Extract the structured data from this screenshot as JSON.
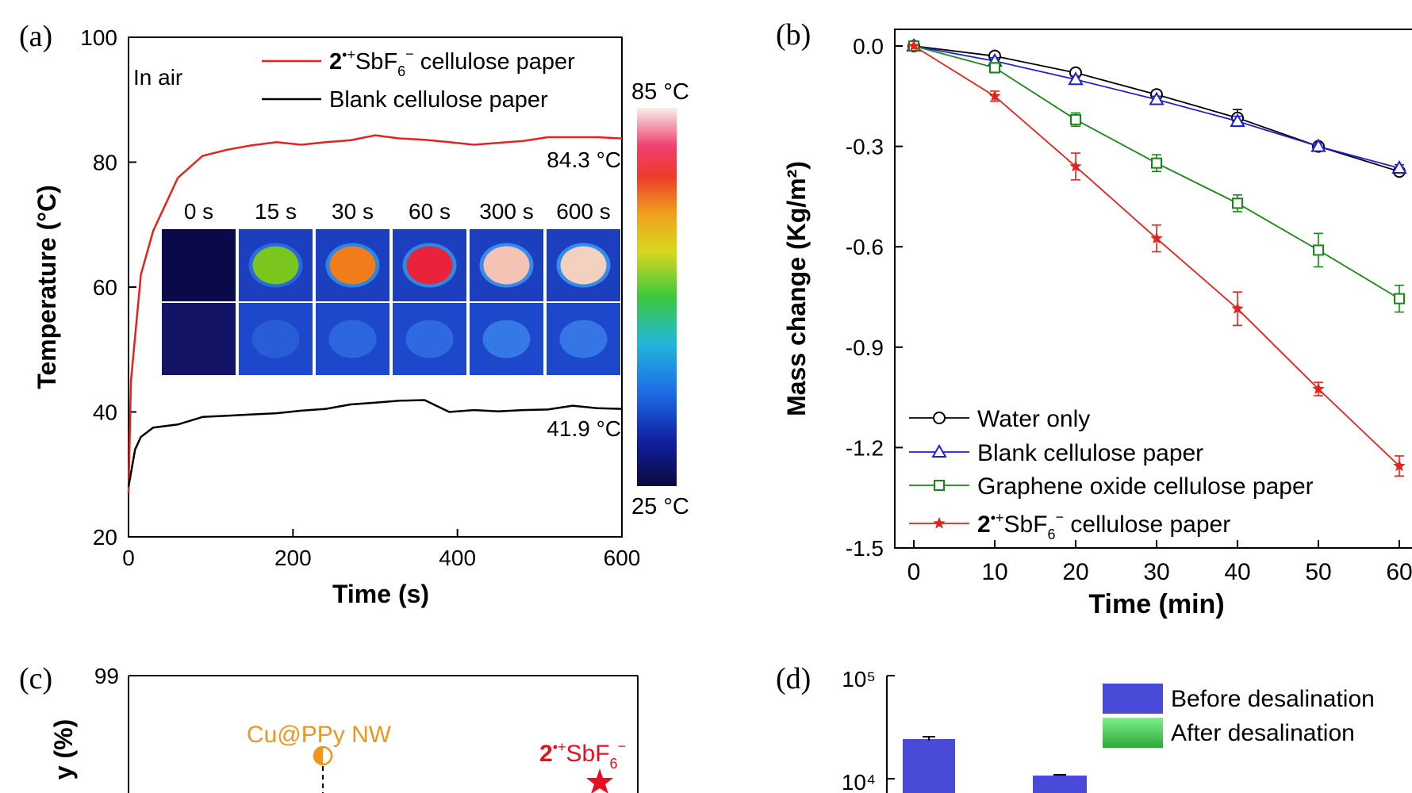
{
  "panels": {
    "a": {
      "label": "(a)",
      "annotation": "In air",
      "chart_data": {
        "type": "line",
        "xlabel": "Time (s)",
        "ylabel": "Temperature (°C)",
        "xlim": [
          0,
          600
        ],
        "ylim": [
          20,
          100
        ],
        "xticks": [
          "0",
          "200",
          "400",
          "600"
        ],
        "yticks": [
          "20",
          "40",
          "60",
          "80",
          "100"
        ],
        "legend_position": "top-right",
        "series": [
          {
            "name": "2•+SbF6− cellulose paper",
            "color": "#e8211e",
            "end_label": "84.3 °C",
            "x": [
              0,
              3,
              15,
              30,
              60,
              90,
              120,
              150,
              180,
              210,
              240,
              270,
              300,
              330,
              360,
              390,
              420,
              450,
              480,
              510,
              540,
              570,
              600
            ],
            "y": [
              27,
              45,
              62,
              69,
              77.5,
              81,
              82,
              82.7,
              83.2,
              82.8,
              83.2,
              83.5,
              84.3,
              83.8,
              83.6,
              83.2,
              82.8,
              83.1,
              83.4,
              84,
              84,
              84,
              83.8
            ]
          },
          {
            "name": "Blank cellulose paper",
            "color": "#000000",
            "end_label": "41.9 °C",
            "x": [
              0,
              8,
              15,
              30,
              60,
              90,
              120,
              150,
              180,
              210,
              240,
              270,
              300,
              330,
              360,
              390,
              420,
              450,
              480,
              510,
              540,
              570,
              600
            ],
            "y": [
              28,
              34,
              36,
              37.5,
              38,
              39.2,
              39.4,
              39.6,
              39.8,
              40.2,
              40.5,
              41.2,
              41.5,
              41.8,
              41.9,
              40,
              40.3,
              40.1,
              40.3,
              40.4,
              41,
              40.6,
              40.5
            ]
          }
        ],
        "series_name_parts": [
          {
            "main": "2",
            "sup": "•+",
            "mid": "SbF",
            "sub": "6",
            "sup2": "−",
            "rest": " cellulose paper"
          },
          {
            "rest": "Blank cellulose paper"
          }
        ]
      },
      "colorbar": {
        "max_label": "85 °C",
        "min_label": "25 °C"
      },
      "thermal_images": {
        "times": [
          "0 s",
          "15 s",
          "30 s",
          "60 s",
          "300 s",
          "600 s"
        ],
        "top_row_color": [
          "#0a0a4a",
          "#7ac61e",
          "#f07d1a",
          "#e8233a",
          "#f5c3b4",
          "#f4d0c0"
        ],
        "top_row_glow": [
          "#0a0a4a",
          "#2a6ee0",
          "#2b8ee8",
          "#3390e8",
          "#3a95ee",
          "#3a95ee"
        ],
        "bottom_row_color": [
          "#101060",
          "#2a62d8",
          "#2f6ce2",
          "#3270e4",
          "#3a82ea",
          "#3a7ee8"
        ],
        "top_row_level": [
          0,
          0.45,
          0.7,
          0.85,
          0.95,
          0.97
        ]
      }
    },
    "b": {
      "label": "(b)",
      "chart_data": {
        "type": "line",
        "xlabel": "Time (min)",
        "ylabel": "Mass change (Kg/m²)",
        "xlim": [
          0,
          60
        ],
        "ylim": [
          -1.5,
          0.0
        ],
        "xticks": [
          "0",
          "10",
          "20",
          "30",
          "40",
          "50",
          "60"
        ],
        "yticks": [
          "0.0",
          "-0.3",
          "-0.6",
          "-0.9",
          "-1.2",
          "-1.5"
        ],
        "legend_position": "bottom-left",
        "x": [
          0,
          10,
          20,
          30,
          40,
          50,
          60
        ],
        "series": [
          {
            "name": "Water only",
            "color": "#000000",
            "marker": "circle",
            "y": [
              0,
              -0.03,
              -0.08,
              -0.145,
              -0.215,
              -0.3,
              -0.375
            ],
            "err": [
              0.005,
              0.01,
              0.01,
              0.01,
              0.025,
              0.01,
              0.01
            ]
          },
          {
            "name": "Blank cellulose paper",
            "color": "#1f1fd6",
            "marker": "triangle",
            "y": [
              0,
              -0.045,
              -0.1,
              -0.16,
              -0.225,
              -0.3,
              -0.365
            ],
            "err": [
              0.005,
              0.01,
              0.01,
              0.01,
              0.015,
              0.01,
              0.01
            ]
          },
          {
            "name": "Graphene oxide cellulose paper",
            "color": "#148a14",
            "marker": "square",
            "y": [
              0,
              -0.065,
              -0.22,
              -0.35,
              -0.47,
              -0.61,
              -0.755
            ],
            "err": [
              0.005,
              0.015,
              0.02,
              0.025,
              0.025,
              0.05,
              0.04
            ]
          },
          {
            "name": "2•+SbF6− cellulose paper",
            "color": "#e8211e",
            "marker": "star",
            "y": [
              0,
              -0.15,
              -0.36,
              -0.575,
              -0.785,
              -1.025,
              -1.255
            ],
            "err": [
              0.005,
              0.015,
              0.04,
              0.04,
              0.05,
              0.02,
              0.03
            ]
          }
        ]
      }
    },
    "c": {
      "label": "(c)",
      "chart_data": {
        "type": "scatter",
        "yticks": [
          "99"
        ],
        "ylabel_visible": "y (%)",
        "points": [
          {
            "name": "Cu@PPy NW",
            "color": "#f0961e",
            "marker": "half-circle"
          },
          {
            "name": "2•+SbF6−",
            "color": "#e8101e",
            "marker": "star"
          }
        ]
      }
    },
    "d": {
      "label": "(d)",
      "chart_data": {
        "type": "bar",
        "yscale": "log",
        "yticks": [
          "10⁵",
          "10⁴"
        ],
        "legend_position": "top-right",
        "series": [
          {
            "name": "Before desalination",
            "color": "#4a4ad8",
            "values": [
              24000,
              10500
            ]
          },
          {
            "name": "After desalination",
            "color": "#4ae85a",
            "values": []
          }
        ]
      }
    }
  }
}
